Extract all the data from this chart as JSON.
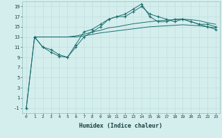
{
  "xlabel": "Humidex (Indice chaleur)",
  "bg_color": "#d4eeed",
  "grid_color": "#c0dede",
  "line_color": "#1a6e6e",
  "xlim": [
    -0.5,
    23.5
  ],
  "ylim": [
    -2,
    20
  ],
  "xticks": [
    0,
    1,
    2,
    3,
    4,
    5,
    6,
    7,
    8,
    9,
    10,
    11,
    12,
    13,
    14,
    15,
    16,
    17,
    18,
    19,
    20,
    21,
    22,
    23
  ],
  "yticks": [
    -1,
    1,
    3,
    5,
    7,
    9,
    11,
    13,
    15,
    17,
    19
  ],
  "series": [
    {
      "x": [
        0,
        1,
        2,
        3,
        4,
        5,
        6,
        7,
        8,
        9,
        10,
        11,
        12,
        13,
        14,
        15,
        16,
        17,
        18,
        19,
        20,
        21,
        22,
        23
      ],
      "y": [
        -1,
        13,
        11,
        10,
        9.2,
        9,
        11,
        13,
        14,
        15,
        16.5,
        17,
        17,
        18,
        19,
        17.5,
        17,
        16.5,
        16,
        16.5,
        16,
        15.5,
        15.5,
        15
      ],
      "marker": "+"
    },
    {
      "x": [
        0,
        1,
        2,
        3,
        4,
        5,
        6,
        7,
        8,
        9,
        10,
        11,
        12,
        13,
        14,
        15,
        16,
        17,
        18,
        19,
        20,
        21,
        22,
        23
      ],
      "y": [
        -1,
        13,
        11,
        10.5,
        9.5,
        9,
        11.5,
        14,
        14.5,
        15.5,
        16.5,
        17,
        17.5,
        18.5,
        19.5,
        17,
        16,
        16,
        16.5,
        16.5,
        16,
        15.5,
        15,
        14.5
      ],
      "marker": "+"
    },
    {
      "x": [
        1,
        2,
        3,
        4,
        5,
        6,
        7,
        8,
        9,
        10,
        11,
        12,
        13,
        14,
        15,
        16,
        17,
        18,
        19,
        20,
        21,
        22,
        23
      ],
      "y": [
        13,
        13,
        13,
        13,
        13,
        13.2,
        13.5,
        14,
        14.3,
        14.8,
        15,
        15.3,
        15.6,
        15.8,
        16,
        16.2,
        16.3,
        16.4,
        16.5,
        16.4,
        16.2,
        15.8,
        15.5
      ],
      "marker": null
    },
    {
      "x": [
        1,
        2,
        3,
        4,
        5,
        6,
        7,
        8,
        9,
        10,
        11,
        12,
        13,
        14,
        15,
        16,
        17,
        18,
        19,
        20,
        21,
        22,
        23
      ],
      "y": [
        13,
        13,
        13,
        13,
        13,
        13,
        13.2,
        13.5,
        13.8,
        14,
        14.2,
        14.4,
        14.6,
        14.8,
        15,
        15.1,
        15.2,
        15.3,
        15.4,
        15.3,
        15.2,
        15,
        14.8
      ],
      "marker": null
    }
  ]
}
